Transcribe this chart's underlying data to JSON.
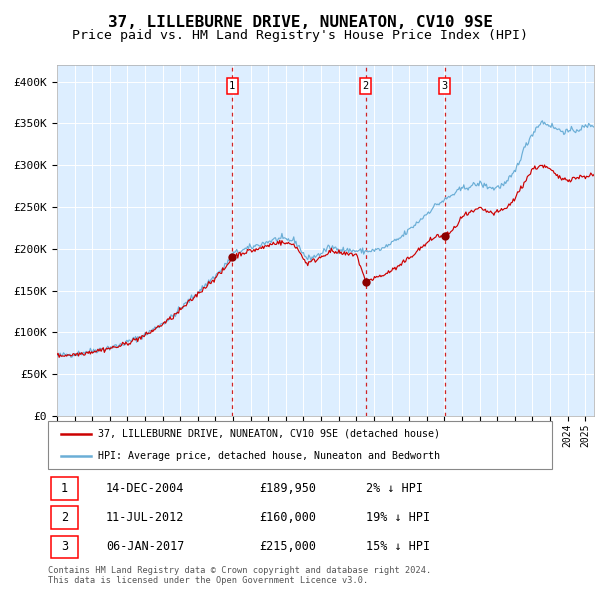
{
  "title1": "37, LILLEBURNE DRIVE, NUNEATON, CV10 9SE",
  "title2": "Price paid vs. HM Land Registry's House Price Index (HPI)",
  "legend1": "37, LILLEBURNE DRIVE, NUNEATON, CV10 9SE (detached house)",
  "legend2": "HPI: Average price, detached house, Nuneaton and Bedworth",
  "footer1": "Contains HM Land Registry data © Crown copyright and database right 2024.",
  "footer2": "This data is licensed under the Open Government Licence v3.0.",
  "transactions": [
    {
      "num": 1,
      "date": "14-DEC-2004",
      "price": 189950,
      "pct": "2%",
      "dir": "↓"
    },
    {
      "num": 2,
      "date": "11-JUL-2012",
      "price": 160000,
      "pct": "19%",
      "dir": "↓"
    },
    {
      "num": 3,
      "date": "06-JAN-2017",
      "price": 215000,
      "pct": "15%",
      "dir": "↓"
    }
  ],
  "transaction_dates_num": [
    2004.958,
    2012.528,
    2017.014
  ],
  "transaction_prices": [
    189950,
    160000,
    215000
  ],
  "hpi_color": "#6baed6",
  "price_color": "#cc0000",
  "vline_color": "#cc0000",
  "bg_color": "#ddeeff",
  "ylim": [
    0,
    420000
  ],
  "yticks": [
    0,
    50000,
    100000,
    150000,
    200000,
    250000,
    300000,
    350000,
    400000
  ],
  "xstart": 1995.0,
  "xend": 2025.5,
  "grid_color": "#cccccc",
  "title_fontsize": 11.5,
  "subtitle_fontsize": 9.5
}
